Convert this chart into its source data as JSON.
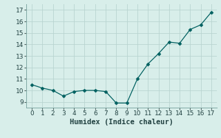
{
  "x": [
    0,
    1,
    2,
    3,
    4,
    5,
    6,
    7,
    8,
    9,
    10,
    11,
    12,
    13,
    14,
    15,
    16,
    17
  ],
  "y": [
    10.5,
    10.2,
    10.0,
    9.5,
    9.9,
    10.0,
    10.0,
    9.9,
    8.9,
    8.9,
    11.0,
    12.3,
    13.2,
    14.2,
    14.1,
    15.3,
    15.7,
    16.8
  ],
  "line_color": "#006060",
  "marker_color": "#006060",
  "bg_color": "#d8eeea",
  "grid_color": "#b8d4d0",
  "xlabel": "Humidex (Indice chaleur)",
  "ylim": [
    8.5,
    17.5
  ],
  "xlim": [
    -0.5,
    17.5
  ],
  "yticks": [
    9,
    10,
    11,
    12,
    13,
    14,
    15,
    16,
    17
  ],
  "xticks": [
    0,
    1,
    2,
    3,
    4,
    5,
    6,
    7,
    8,
    9,
    10,
    11,
    12,
    13,
    14,
    15,
    16,
    17
  ],
  "tick_fontsize": 6.5,
  "xlabel_fontsize": 7.5
}
